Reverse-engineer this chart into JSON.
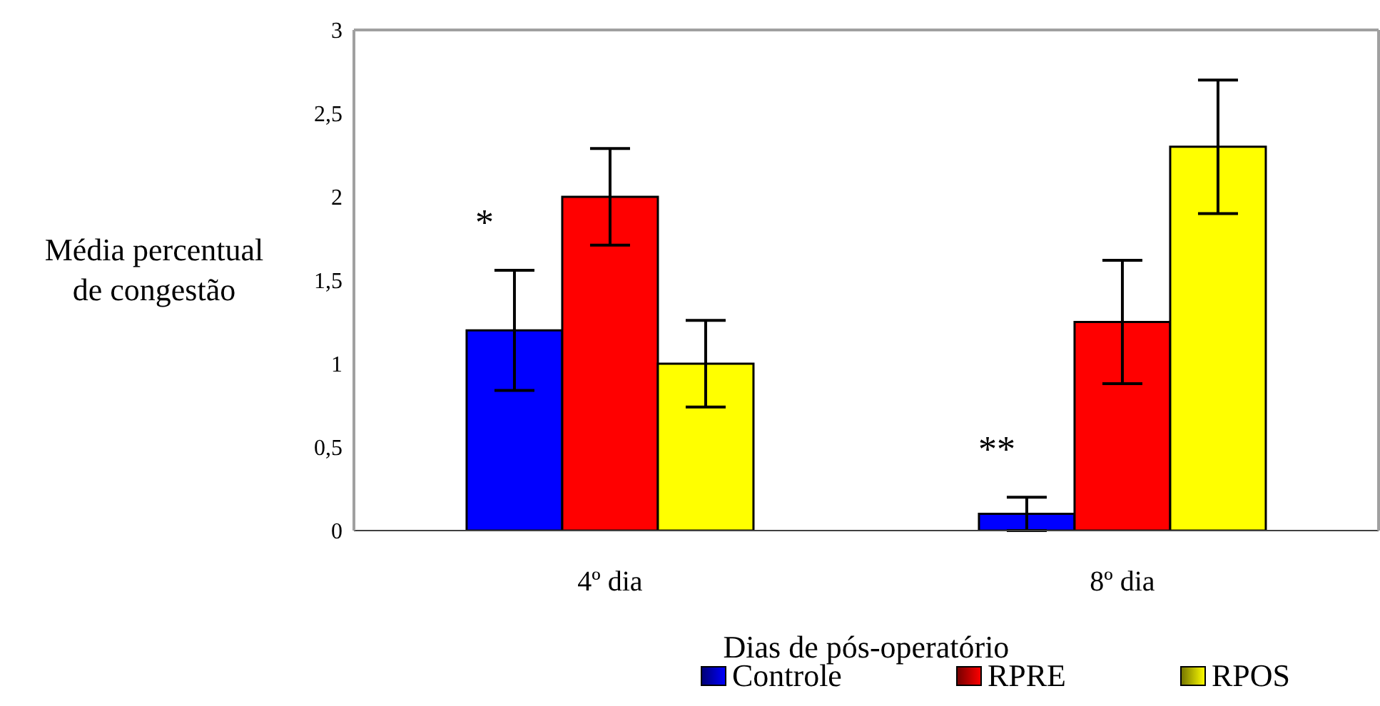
{
  "chart_data": {
    "type": "bar",
    "xlabel": "Dias de pós-operatório",
    "ylabel": "Média percentual\nde congestão",
    "categories": [
      "4º dia",
      "8º dia"
    ],
    "series": [
      {
        "name": "Controle",
        "color": "#0000ff",
        "values": [
          1.2,
          0.1
        ],
        "errors": [
          0.36,
          0.1
        ]
      },
      {
        "name": "RPRE",
        "color": "#ff0000",
        "values": [
          2.0,
          1.25
        ],
        "errors": [
          0.29,
          0.37
        ]
      },
      {
        "name": "RPOS",
        "color": "#ffff00",
        "values": [
          1.0,
          2.3
        ],
        "errors": [
          0.26,
          0.4
        ]
      }
    ],
    "ylim": [
      0,
      3
    ],
    "yticks": [
      0,
      {
        "value": 0.5,
        "label": "0,5"
      },
      1,
      {
        "value": 1.5,
        "label": "1,5"
      },
      2,
      {
        "value": 2.5,
        "label": "2,5"
      },
      3
    ],
    "grid": false,
    "legend": "bottom",
    "annotations": [
      "*",
      "**"
    ]
  }
}
